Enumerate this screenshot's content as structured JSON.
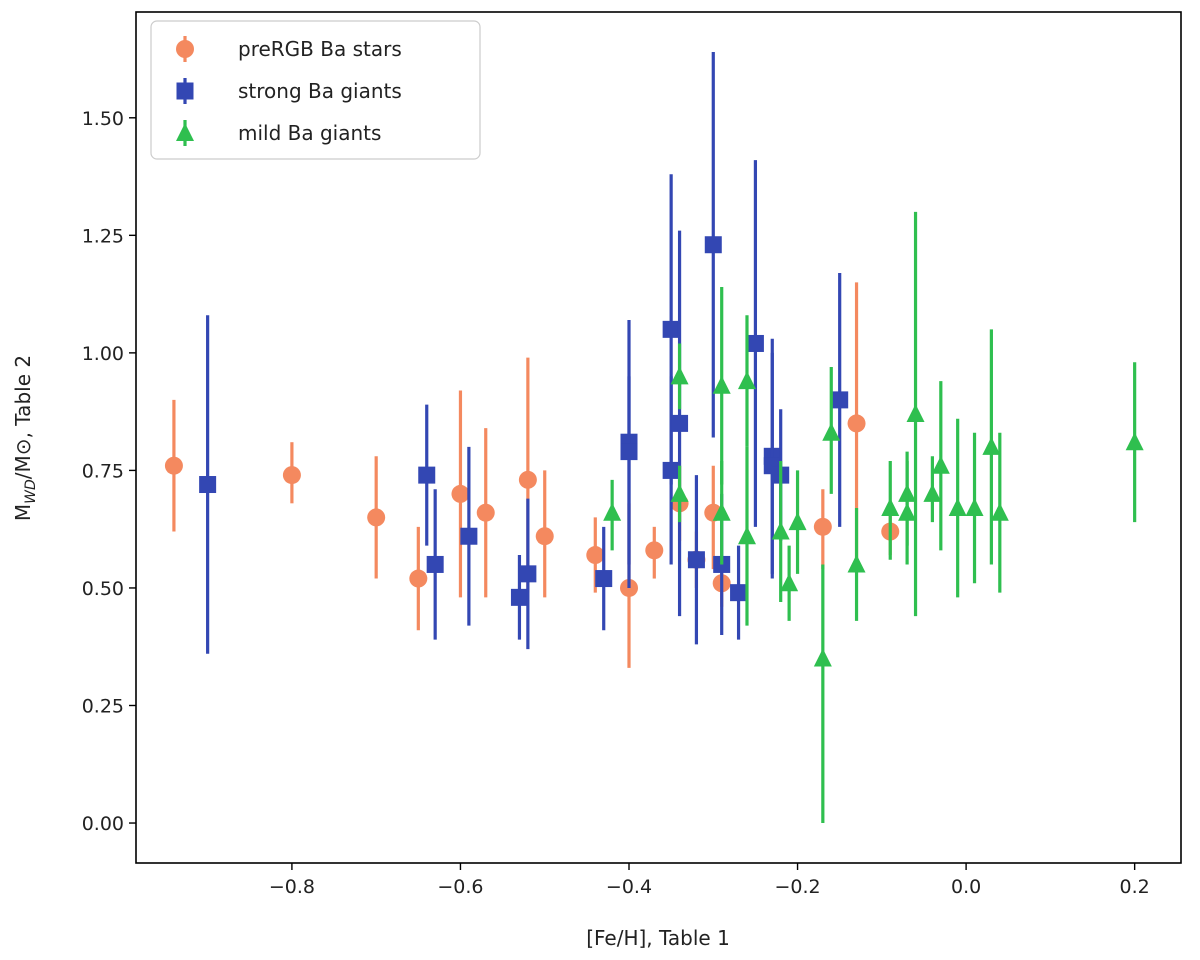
{
  "chart_data": {
    "type": "scatter",
    "title": "",
    "xlabel": "[Fe/H], Table 1",
    "ylabel_main": "M",
    "ylabel_sub": "WD",
    "ylabel_rest": "/M⊙, Table 2",
    "xlim": [
      -0.985,
      0.255
    ],
    "ylim": [
      -0.085,
      1.725
    ],
    "xticks": [
      -0.8,
      -0.6,
      -0.4,
      -0.2,
      0.0,
      0.2
    ],
    "xtick_labels": [
      "−0.8",
      "−0.6",
      "−0.4",
      "−0.2",
      "0.0",
      "0.2"
    ],
    "yticks": [
      0.0,
      0.25,
      0.5,
      0.75,
      1.0,
      1.25,
      1.5
    ],
    "ytick_labels": [
      "0.00",
      "0.25",
      "0.50",
      "0.75",
      "1.00",
      "1.25",
      "1.50"
    ],
    "grid": false,
    "legend_position": "top-left",
    "series": [
      {
        "name": "preRGB Ba stars",
        "marker": "circle",
        "color": "#f4895f",
        "points": [
          {
            "x": -0.94,
            "y": 0.76,
            "lo": 0.62,
            "hi": 0.9
          },
          {
            "x": -0.8,
            "y": 0.74,
            "lo": 0.68,
            "hi": 0.81
          },
          {
            "x": -0.7,
            "y": 0.65,
            "lo": 0.52,
            "hi": 0.78
          },
          {
            "x": -0.65,
            "y": 0.52,
            "lo": 0.41,
            "hi": 0.63
          },
          {
            "x": -0.6,
            "y": 0.7,
            "lo": 0.48,
            "hi": 0.92
          },
          {
            "x": -0.57,
            "y": 0.66,
            "lo": 0.48,
            "hi": 0.84
          },
          {
            "x": -0.52,
            "y": 0.73,
            "lo": 0.49,
            "hi": 0.99
          },
          {
            "x": -0.5,
            "y": 0.61,
            "lo": 0.48,
            "hi": 0.75
          },
          {
            "x": -0.44,
            "y": 0.57,
            "lo": 0.49,
            "hi": 0.65
          },
          {
            "x": -0.4,
            "y": 0.5,
            "lo": 0.33,
            "hi": 0.68
          },
          {
            "x": -0.37,
            "y": 0.58,
            "lo": 0.52,
            "hi": 0.63
          },
          {
            "x": -0.34,
            "y": 0.68,
            "lo": 0.6,
            "hi": 0.76
          },
          {
            "x": -0.32,
            "y": 0.56,
            "lo": 0.5,
            "hi": 0.62
          },
          {
            "x": -0.3,
            "y": 0.66,
            "lo": 0.54,
            "hi": 0.76
          },
          {
            "x": -0.29,
            "y": 0.51,
            "lo": 0.46,
            "hi": 0.55
          },
          {
            "x": -0.17,
            "y": 0.63,
            "lo": 0.54,
            "hi": 0.71
          },
          {
            "x": -0.13,
            "y": 0.85,
            "lo": 0.55,
            "hi": 1.15
          },
          {
            "x": -0.09,
            "y": 0.62,
            "lo": 0.57,
            "hi": 0.66
          }
        ]
      },
      {
        "name": "strong Ba giants",
        "marker": "square",
        "color": "#3347b3",
        "points": [
          {
            "x": -0.9,
            "y": 0.72,
            "lo": 0.36,
            "hi": 1.08
          },
          {
            "x": -0.64,
            "y": 0.74,
            "lo": 0.59,
            "hi": 0.89
          },
          {
            "x": -0.63,
            "y": 0.55,
            "lo": 0.39,
            "hi": 0.71
          },
          {
            "x": -0.59,
            "y": 0.61,
            "lo": 0.42,
            "hi": 0.8
          },
          {
            "x": -0.53,
            "y": 0.48,
            "lo": 0.39,
            "hi": 0.57
          },
          {
            "x": -0.52,
            "y": 0.53,
            "lo": 0.37,
            "hi": 0.69
          },
          {
            "x": -0.43,
            "y": 0.52,
            "lo": 0.41,
            "hi": 0.63
          },
          {
            "x": -0.4,
            "y": 0.81,
            "lo": 0.55,
            "hi": 1.07
          },
          {
            "x": -0.4,
            "y": 0.79,
            "lo": 0.5,
            "hi": 0.95
          },
          {
            "x": -0.35,
            "y": 1.05,
            "lo": 0.72,
            "hi": 1.38
          },
          {
            "x": -0.35,
            "y": 0.75,
            "lo": 0.55,
            "hi": 0.95
          },
          {
            "x": -0.34,
            "y": 0.85,
            "lo": 0.44,
            "hi": 1.26
          },
          {
            "x": -0.32,
            "y": 0.56,
            "lo": 0.38,
            "hi": 0.74
          },
          {
            "x": -0.3,
            "y": 1.23,
            "lo": 0.82,
            "hi": 1.64
          },
          {
            "x": -0.29,
            "y": 0.55,
            "lo": 0.4,
            "hi": 0.7
          },
          {
            "x": -0.27,
            "y": 0.49,
            "lo": 0.39,
            "hi": 0.59
          },
          {
            "x": -0.25,
            "y": 1.02,
            "lo": 0.63,
            "hi": 1.41
          },
          {
            "x": -0.23,
            "y": 0.78,
            "lo": 0.53,
            "hi": 1.03
          },
          {
            "x": -0.23,
            "y": 0.76,
            "lo": 0.52,
            "hi": 1.0
          },
          {
            "x": -0.22,
            "y": 0.74,
            "lo": 0.6,
            "hi": 0.88
          },
          {
            "x": -0.15,
            "y": 0.9,
            "lo": 0.63,
            "hi": 1.17
          }
        ]
      },
      {
        "name": "mild Ba giants",
        "marker": "triangle",
        "color": "#2fbf4f",
        "points": [
          {
            "x": -0.42,
            "y": 0.66,
            "lo": 0.58,
            "hi": 0.73
          },
          {
            "x": -0.34,
            "y": 0.95,
            "lo": 0.88,
            "hi": 1.02
          },
          {
            "x": -0.34,
            "y": 0.7,
            "lo": 0.64,
            "hi": 0.76
          },
          {
            "x": -0.29,
            "y": 0.93,
            "lo": 0.72,
            "hi": 1.14
          },
          {
            "x": -0.29,
            "y": 0.66,
            "lo": 0.55,
            "hi": 0.77
          },
          {
            "x": -0.26,
            "y": 0.94,
            "lo": 0.8,
            "hi": 1.08
          },
          {
            "x": -0.26,
            "y": 0.61,
            "lo": 0.42,
            "hi": 0.8
          },
          {
            "x": -0.22,
            "y": 0.62,
            "lo": 0.47,
            "hi": 0.77
          },
          {
            "x": -0.21,
            "y": 0.51,
            "lo": 0.43,
            "hi": 0.59
          },
          {
            "x": -0.2,
            "y": 0.64,
            "lo": 0.53,
            "hi": 0.75
          },
          {
            "x": -0.17,
            "y": 0.35,
            "lo": 0.0,
            "hi": 0.55
          },
          {
            "x": -0.16,
            "y": 0.83,
            "lo": 0.7,
            "hi": 0.97
          },
          {
            "x": -0.13,
            "y": 0.55,
            "lo": 0.43,
            "hi": 0.67
          },
          {
            "x": -0.09,
            "y": 0.67,
            "lo": 0.56,
            "hi": 0.77
          },
          {
            "x": -0.07,
            "y": 0.7,
            "lo": 0.59,
            "hi": 0.79
          },
          {
            "x": -0.07,
            "y": 0.66,
            "lo": 0.55,
            "hi": 0.77
          },
          {
            "x": -0.06,
            "y": 0.87,
            "lo": 0.44,
            "hi": 1.3
          },
          {
            "x": -0.04,
            "y": 0.7,
            "lo": 0.64,
            "hi": 0.78
          },
          {
            "x": -0.03,
            "y": 0.76,
            "lo": 0.58,
            "hi": 0.94
          },
          {
            "x": -0.01,
            "y": 0.67,
            "lo": 0.48,
            "hi": 0.86
          },
          {
            "x": 0.01,
            "y": 0.67,
            "lo": 0.51,
            "hi": 0.83
          },
          {
            "x": 0.03,
            "y": 0.8,
            "lo": 0.55,
            "hi": 1.05
          },
          {
            "x": 0.04,
            "y": 0.66,
            "lo": 0.49,
            "hi": 0.83
          },
          {
            "x": 0.2,
            "y": 0.81,
            "lo": 0.64,
            "hi": 0.98
          }
        ]
      }
    ]
  }
}
